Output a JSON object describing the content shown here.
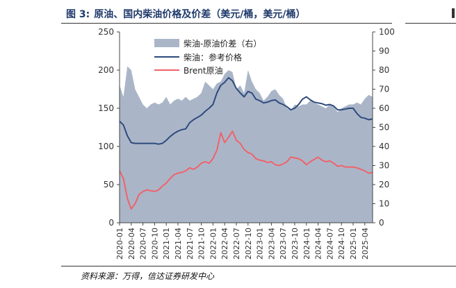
{
  "caption": {
    "number": "图 3:",
    "text": "原油、国内柴油价格及价差（美元/桶，美元/桶）"
  },
  "source": "资料来源：万得，信达证券研发中心",
  "colors": {
    "spread": "#aab6c8",
    "diesel": "#2e4a7d",
    "brent": "#f0626a",
    "axis": "#444444",
    "caption": "#1f3a6b"
  },
  "chart_data": {
    "type": "area+line",
    "title": "原油、国内柴油价格及价差（美元/桶，美元/桶）",
    "left_axis": {
      "ylim": [
        0,
        250
      ],
      "ticks": [
        "0",
        "50",
        "100",
        "150",
        "200",
        "250"
      ]
    },
    "right_axis": {
      "ylim": [
        0,
        100
      ],
      "ticks": [
        "0",
        "10",
        "20",
        "30",
        "40",
        "50",
        "60",
        "70",
        "80",
        "90",
        "100"
      ]
    },
    "x_tick_labels": [
      "2020-01",
      "2020-04",
      "2020-07",
      "2020-10",
      "2021-01",
      "2021-04",
      "2021-07",
      "2021-10",
      "2022-01",
      "2022-04",
      "2022-07",
      "2022-10",
      "2023-01",
      "2023-04",
      "2023-07",
      "2023-10",
      "2024-01",
      "2024-04",
      "2024-07",
      "2024-10",
      "2025-01",
      "2025-04"
    ],
    "legend": {
      "position": "top-center",
      "entries": [
        {
          "label": "柴油-原油价差（右）",
          "type": "area",
          "color": "#aab6c8"
        },
        {
          "label": "柴油：参考价格",
          "type": "line",
          "color": "#2e4a7d"
        },
        {
          "label": "Brent原油",
          "type": "line",
          "color": "#f0626a"
        }
      ]
    },
    "months": [
      "2020-01",
      "2020-02",
      "2020-03",
      "2020-04",
      "2020-05",
      "2020-06",
      "2020-07",
      "2020-08",
      "2020-09",
      "2020-10",
      "2020-11",
      "2020-12",
      "2021-01",
      "2021-02",
      "2021-03",
      "2021-04",
      "2021-05",
      "2021-06",
      "2021-07",
      "2021-08",
      "2021-09",
      "2021-10",
      "2021-11",
      "2021-12",
      "2022-01",
      "2022-02",
      "2022-03",
      "2022-04",
      "2022-05",
      "2022-06",
      "2022-07",
      "2022-08",
      "2022-09",
      "2022-10",
      "2022-11",
      "2022-12",
      "2023-01",
      "2023-02",
      "2023-03",
      "2023-04",
      "2023-05",
      "2023-06",
      "2023-07",
      "2023-08",
      "2023-09",
      "2023-10",
      "2023-11",
      "2023-12",
      "2024-01",
      "2024-02",
      "2024-03",
      "2024-04",
      "2024-05",
      "2024-06",
      "2024-07",
      "2024-08",
      "2024-09",
      "2024-10",
      "2024-11",
      "2024-12",
      "2025-01",
      "2025-02",
      "2025-03",
      "2025-04",
      "2025-05",
      "2025-06"
    ],
    "series": [
      {
        "name": "柴油-原油价差（右）",
        "axis": "right",
        "values": [
          72,
          66,
          82,
          80,
          70,
          66,
          62,
          60,
          62,
          63,
          62,
          63,
          66,
          62,
          64,
          65,
          64,
          66,
          64,
          65,
          66,
          68,
          74,
          72,
          70,
          73,
          74,
          78,
          80,
          79,
          70,
          72,
          68,
          80,
          74,
          70,
          68,
          64,
          66,
          69,
          70,
          67,
          65,
          60,
          59,
          62,
          61,
          62,
          62,
          64,
          63,
          62,
          61,
          60,
          62,
          61,
          58,
          60,
          61,
          62,
          62,
          63,
          62,
          65,
          67,
          66
        ]
      },
      {
        "name": "柴油：参考价格",
        "axis": "left",
        "values": [
          133,
          128,
          114,
          105,
          104,
          104,
          104,
          104,
          104,
          104,
          103,
          104,
          108,
          113,
          117,
          120,
          122,
          123,
          131,
          135,
          138,
          141,
          146,
          150,
          155,
          170,
          180,
          184,
          190,
          186,
          176,
          170,
          165,
          172,
          170,
          162,
          160,
          157,
          158,
          160,
          161,
          157,
          155,
          152,
          148,
          150,
          155,
          162,
          165,
          161,
          158,
          157,
          156,
          154,
          155,
          153,
          148,
          148,
          149,
          150,
          150,
          143,
          138,
          137,
          135,
          136
        ]
      },
      {
        "name": "Brent原油",
        "axis": "left",
        "values": [
          68,
          58,
          32,
          18,
          25,
          37,
          41,
          43,
          42,
          41,
          43,
          48,
          52,
          58,
          63,
          65,
          66,
          68,
          72,
          70,
          73,
          78,
          80,
          78,
          84,
          95,
          118,
          105,
          112,
          120,
          108,
          104,
          96,
          92,
          90,
          84,
          82,
          81,
          79,
          80,
          76,
          75,
          77,
          80,
          86,
          85,
          84,
          81,
          76,
          80,
          83,
          86,
          82,
          80,
          81,
          78,
          74,
          75,
          73,
          73,
          73,
          72,
          70,
          68,
          65,
          66
        ]
      }
    ]
  }
}
